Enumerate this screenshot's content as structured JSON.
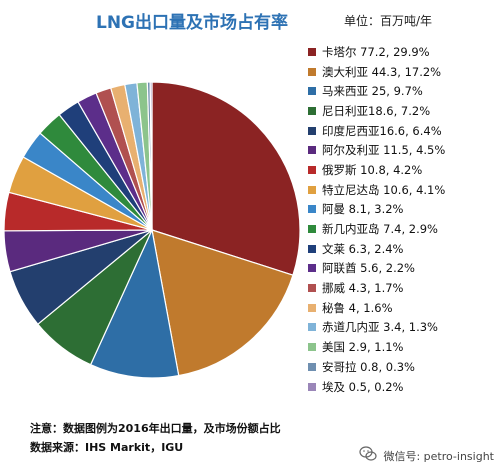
{
  "header": {
    "title": "LNG出口量及市场占有率",
    "unit": "单位：百万吨/年"
  },
  "notes": {
    "note1": "注意：数据图例为2016年出口量，及市场份额占比",
    "note2": "数据来源：IHS Markit，IGU"
  },
  "watermark": {
    "text": "微信号: petro-insight",
    "icon": "wechat-icon"
  },
  "chart_data": {
    "type": "pie",
    "title": "LNG出口量及市场占有率",
    "unit": "百万吨/年",
    "legend_position": "right",
    "categories": [
      "卡塔尔",
      "澳大利亚",
      "马来西亚",
      "尼日利亚",
      "印度尼西亚",
      "阿尔及利亚",
      "俄罗斯",
      "特立尼达岛",
      "阿曼",
      "新几内亚岛",
      "文莱",
      "阿联酋",
      "挪威",
      "秘鲁",
      "赤道几内亚",
      "美国",
      "安哥拉",
      "埃及"
    ],
    "values": [
      77.2,
      44.3,
      25,
      18.6,
      16.6,
      11.5,
      10.8,
      10.6,
      8.1,
      7.4,
      6.3,
      5.6,
      4.3,
      4,
      3.4,
      2.9,
      0.8,
      0.5
    ],
    "shares_percent": [
      29.9,
      17.2,
      9.7,
      7.2,
      6.4,
      4.5,
      4.2,
      4.1,
      3.2,
      2.9,
      2.4,
      2.2,
      1.7,
      1.6,
      1.3,
      1.1,
      0.3,
      0.2
    ],
    "legend_labels": [
      "卡塔尔 77.2, 29.9%",
      "澳大利亚 44.3, 17.2%",
      "马来西亚 25, 9.7%",
      "尼日利亚18.6, 7.2%",
      "印度尼西亚16.6, 6.4%",
      "阿尔及利亚 11.5, 4.5%",
      "俄罗斯 10.8, 4.2%",
      "特立尼达岛 10.6, 4.1%",
      "阿曼 8.1, 3.2%",
      "新几内亚岛 7.4, 2.9%",
      "文莱 6.3, 2.4%",
      "阿联酋 5.6, 2.2%",
      "挪威 4.3, 1.7%",
      "秘鲁 4, 1.6%",
      "赤道几内亚 3.4, 1.3%",
      "美国 2.9, 1.1%",
      "安哥拉 0.8, 0.3%",
      "埃及 0.5, 0.2%"
    ],
    "colors": [
      "#8b2323",
      "#c07a2d",
      "#2e6ea6",
      "#2d6e34",
      "#233f6e",
      "#5a2a7e",
      "#b82a2a",
      "#e0a040",
      "#3a86c8",
      "#2f8a3c",
      "#1f3f7a",
      "#5c2e8a",
      "#b05050",
      "#e8b070",
      "#7fb3d8",
      "#8cc48c",
      "#6f8fb0",
      "#9a86b8"
    ]
  }
}
